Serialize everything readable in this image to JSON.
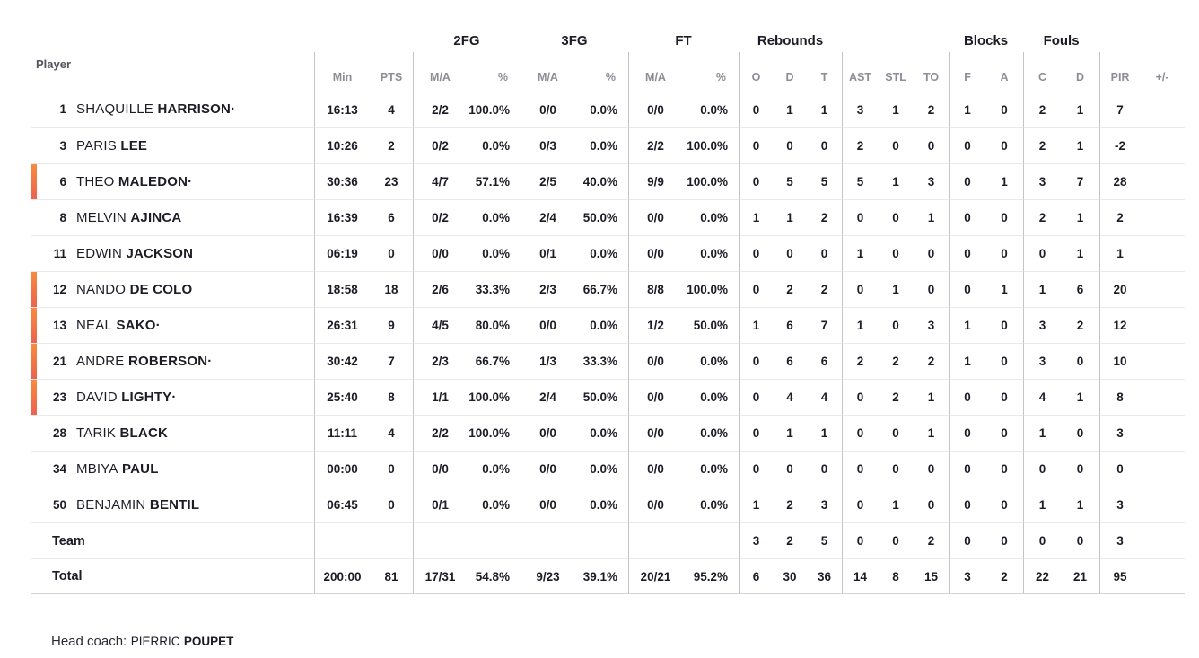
{
  "table": {
    "player_header": "Player",
    "groups": [
      {
        "label": "",
        "cols": 2
      },
      {
        "label": "2FG",
        "cols": 2
      },
      {
        "label": "3FG",
        "cols": 2
      },
      {
        "label": "FT",
        "cols": 2
      },
      {
        "label": "Rebounds",
        "cols": 3
      },
      {
        "label": "",
        "cols": 3
      },
      {
        "label": "Blocks",
        "cols": 2
      },
      {
        "label": "Fouls",
        "cols": 2
      },
      {
        "label": "",
        "cols": 2
      }
    ],
    "columns": [
      {
        "key": "min",
        "label": "Min",
        "group_start": true
      },
      {
        "key": "pts",
        "label": "PTS"
      },
      {
        "key": "fg2_ma",
        "label": "M/A",
        "group_start": true
      },
      {
        "key": "fg2_pct",
        "label": "%",
        "pct": true
      },
      {
        "key": "fg3_ma",
        "label": "M/A",
        "group_start": true
      },
      {
        "key": "fg3_pct",
        "label": "%",
        "pct": true
      },
      {
        "key": "ft_ma",
        "label": "M/A",
        "group_start": true
      },
      {
        "key": "ft_pct",
        "label": "%",
        "pct": true
      },
      {
        "key": "reb_o",
        "label": "O",
        "group_start": true
      },
      {
        "key": "reb_d",
        "label": "D"
      },
      {
        "key": "reb_t",
        "label": "T"
      },
      {
        "key": "ast",
        "label": "AST",
        "group_start": true
      },
      {
        "key": "stl",
        "label": "STL"
      },
      {
        "key": "to",
        "label": "TO"
      },
      {
        "key": "blk_f",
        "label": "F",
        "group_start": true
      },
      {
        "key": "blk_a",
        "label": "A"
      },
      {
        "key": "foul_c",
        "label": "C",
        "group_start": true
      },
      {
        "key": "foul_d",
        "label": "D"
      },
      {
        "key": "pir",
        "label": "PIR",
        "group_start": true
      },
      {
        "key": "pm",
        "label": "+/-"
      }
    ],
    "rows": [
      {
        "type": "player",
        "number": "1",
        "first": "SHAQUILLE",
        "last": "HARRISON",
        "dot": "·",
        "on_court": false,
        "min": "16:13",
        "pts": "4",
        "fg2_ma": "2/2",
        "fg2_pct": "100.0%",
        "fg3_ma": "0/0",
        "fg3_pct": "0.0%",
        "ft_ma": "0/0",
        "ft_pct": "0.0%",
        "reb_o": "0",
        "reb_d": "1",
        "reb_t": "1",
        "ast": "3",
        "stl": "1",
        "to": "2",
        "blk_f": "1",
        "blk_a": "0",
        "foul_c": "2",
        "foul_d": "1",
        "pir": "7",
        "pm": ""
      },
      {
        "type": "player",
        "number": "3",
        "first": "PARIS",
        "last": "LEE",
        "dot": "",
        "on_court": false,
        "min": "10:26",
        "pts": "2",
        "fg2_ma": "0/2",
        "fg2_pct": "0.0%",
        "fg3_ma": "0/3",
        "fg3_pct": "0.0%",
        "ft_ma": "2/2",
        "ft_pct": "100.0%",
        "reb_o": "0",
        "reb_d": "0",
        "reb_t": "0",
        "ast": "2",
        "stl": "0",
        "to": "0",
        "blk_f": "0",
        "blk_a": "0",
        "foul_c": "2",
        "foul_d": "1",
        "pir": "-2",
        "pm": ""
      },
      {
        "type": "player",
        "number": "6",
        "first": "THEO",
        "last": "MALEDON",
        "dot": "·",
        "on_court": true,
        "min": "30:36",
        "pts": "23",
        "fg2_ma": "4/7",
        "fg2_pct": "57.1%",
        "fg3_ma": "2/5",
        "fg3_pct": "40.0%",
        "ft_ma": "9/9",
        "ft_pct": "100.0%",
        "reb_o": "0",
        "reb_d": "5",
        "reb_t": "5",
        "ast": "5",
        "stl": "1",
        "to": "3",
        "blk_f": "0",
        "blk_a": "1",
        "foul_c": "3",
        "foul_d": "7",
        "pir": "28",
        "pm": ""
      },
      {
        "type": "player",
        "number": "8",
        "first": "MELVIN",
        "last": "AJINCA",
        "dot": "",
        "on_court": false,
        "min": "16:39",
        "pts": "6",
        "fg2_ma": "0/2",
        "fg2_pct": "0.0%",
        "fg3_ma": "2/4",
        "fg3_pct": "50.0%",
        "ft_ma": "0/0",
        "ft_pct": "0.0%",
        "reb_o": "1",
        "reb_d": "1",
        "reb_t": "2",
        "ast": "0",
        "stl": "0",
        "to": "1",
        "blk_f": "0",
        "blk_a": "0",
        "foul_c": "2",
        "foul_d": "1",
        "pir": "2",
        "pm": ""
      },
      {
        "type": "player",
        "number": "11",
        "first": "EDWIN",
        "last": "JACKSON",
        "dot": "",
        "on_court": false,
        "min": "06:19",
        "pts": "0",
        "fg2_ma": "0/0",
        "fg2_pct": "0.0%",
        "fg3_ma": "0/1",
        "fg3_pct": "0.0%",
        "ft_ma": "0/0",
        "ft_pct": "0.0%",
        "reb_o": "0",
        "reb_d": "0",
        "reb_t": "0",
        "ast": "1",
        "stl": "0",
        "to": "0",
        "blk_f": "0",
        "blk_a": "0",
        "foul_c": "0",
        "foul_d": "1",
        "pir": "1",
        "pm": ""
      },
      {
        "type": "player",
        "number": "12",
        "first": "NANDO",
        "last": "DE COLO",
        "dot": "",
        "on_court": true,
        "min": "18:58",
        "pts": "18",
        "fg2_ma": "2/6",
        "fg2_pct": "33.3%",
        "fg3_ma": "2/3",
        "fg3_pct": "66.7%",
        "ft_ma": "8/8",
        "ft_pct": "100.0%",
        "reb_o": "0",
        "reb_d": "2",
        "reb_t": "2",
        "ast": "0",
        "stl": "1",
        "to": "0",
        "blk_f": "0",
        "blk_a": "1",
        "foul_c": "1",
        "foul_d": "6",
        "pir": "20",
        "pm": ""
      },
      {
        "type": "player",
        "number": "13",
        "first": "NEAL",
        "last": "SAKO",
        "dot": "·",
        "on_court": true,
        "min": "26:31",
        "pts": "9",
        "fg2_ma": "4/5",
        "fg2_pct": "80.0%",
        "fg3_ma": "0/0",
        "fg3_pct": "0.0%",
        "ft_ma": "1/2",
        "ft_pct": "50.0%",
        "reb_o": "1",
        "reb_d": "6",
        "reb_t": "7",
        "ast": "1",
        "stl": "0",
        "to": "3",
        "blk_f": "1",
        "blk_a": "0",
        "foul_c": "3",
        "foul_d": "2",
        "pir": "12",
        "pm": ""
      },
      {
        "type": "player",
        "number": "21",
        "first": "ANDRE",
        "last": "ROBERSON",
        "dot": "·",
        "on_court": true,
        "min": "30:42",
        "pts": "7",
        "fg2_ma": "2/3",
        "fg2_pct": "66.7%",
        "fg3_ma": "1/3",
        "fg3_pct": "33.3%",
        "ft_ma": "0/0",
        "ft_pct": "0.0%",
        "reb_o": "0",
        "reb_d": "6",
        "reb_t": "6",
        "ast": "2",
        "stl": "2",
        "to": "2",
        "blk_f": "1",
        "blk_a": "0",
        "foul_c": "3",
        "foul_d": "0",
        "pir": "10",
        "pm": ""
      },
      {
        "type": "player",
        "number": "23",
        "first": "DAVID",
        "last": "LIGHTY",
        "dot": "·",
        "on_court": true,
        "min": "25:40",
        "pts": "8",
        "fg2_ma": "1/1",
        "fg2_pct": "100.0%",
        "fg3_ma": "2/4",
        "fg3_pct": "50.0%",
        "ft_ma": "0/0",
        "ft_pct": "0.0%",
        "reb_o": "0",
        "reb_d": "4",
        "reb_t": "4",
        "ast": "0",
        "stl": "2",
        "to": "1",
        "blk_f": "0",
        "blk_a": "0",
        "foul_c": "4",
        "foul_d": "1",
        "pir": "8",
        "pm": ""
      },
      {
        "type": "player",
        "number": "28",
        "first": "TARIK",
        "last": "BLACK",
        "dot": "",
        "on_court": false,
        "min": "11:11",
        "pts": "4",
        "fg2_ma": "2/2",
        "fg2_pct": "100.0%",
        "fg3_ma": "0/0",
        "fg3_pct": "0.0%",
        "ft_ma": "0/0",
        "ft_pct": "0.0%",
        "reb_o": "0",
        "reb_d": "1",
        "reb_t": "1",
        "ast": "0",
        "stl": "0",
        "to": "1",
        "blk_f": "0",
        "blk_a": "0",
        "foul_c": "1",
        "foul_d": "0",
        "pir": "3",
        "pm": ""
      },
      {
        "type": "player",
        "number": "34",
        "first": "MBIYA",
        "last": "PAUL",
        "dot": "",
        "on_court": false,
        "min": "00:00",
        "pts": "0",
        "fg2_ma": "0/0",
        "fg2_pct": "0.0%",
        "fg3_ma": "0/0",
        "fg3_pct": "0.0%",
        "ft_ma": "0/0",
        "ft_pct": "0.0%",
        "reb_o": "0",
        "reb_d": "0",
        "reb_t": "0",
        "ast": "0",
        "stl": "0",
        "to": "0",
        "blk_f": "0",
        "blk_a": "0",
        "foul_c": "0",
        "foul_d": "0",
        "pir": "0",
        "pm": ""
      },
      {
        "type": "player",
        "number": "50",
        "first": "BENJAMIN",
        "last": "BENTIL",
        "dot": "",
        "on_court": false,
        "min": "06:45",
        "pts": "0",
        "fg2_ma": "0/1",
        "fg2_pct": "0.0%",
        "fg3_ma": "0/0",
        "fg3_pct": "0.0%",
        "ft_ma": "0/0",
        "ft_pct": "0.0%",
        "reb_o": "1",
        "reb_d": "2",
        "reb_t": "3",
        "ast": "0",
        "stl": "1",
        "to": "0",
        "blk_f": "0",
        "blk_a": "0",
        "foul_c": "1",
        "foul_d": "1",
        "pir": "3",
        "pm": ""
      },
      {
        "type": "team",
        "label": "Team",
        "on_court": false,
        "min": "",
        "pts": "",
        "fg2_ma": "",
        "fg2_pct": "",
        "fg3_ma": "",
        "fg3_pct": "",
        "ft_ma": "",
        "ft_pct": "",
        "reb_o": "3",
        "reb_d": "2",
        "reb_t": "5",
        "ast": "0",
        "stl": "0",
        "to": "2",
        "blk_f": "0",
        "blk_a": "0",
        "foul_c": "0",
        "foul_d": "0",
        "pir": "3",
        "pm": ""
      },
      {
        "type": "total",
        "label": "Total",
        "on_court": false,
        "min": "200:00",
        "pts": "81",
        "fg2_ma": "17/31",
        "fg2_pct": "54.8%",
        "fg3_ma": "9/23",
        "fg3_pct": "39.1%",
        "ft_ma": "20/21",
        "ft_pct": "95.2%",
        "reb_o": "6",
        "reb_d": "30",
        "reb_t": "36",
        "ast": "14",
        "stl": "8",
        "to": "15",
        "blk_f": "3",
        "blk_a": "2",
        "foul_c": "22",
        "foul_d": "21",
        "pir": "95",
        "pm": ""
      }
    ]
  },
  "footer": {
    "head_coach_label": "Head coach:",
    "coach_first_name": "PIERRIC",
    "coach_last_name": "POUPET"
  },
  "colors": {
    "on_court_gradient_top": "#F68B3E",
    "on_court_gradient_bottom": "#EE6150",
    "text_dark": "#1C1C26",
    "header_gray": "#8D8D96"
  }
}
